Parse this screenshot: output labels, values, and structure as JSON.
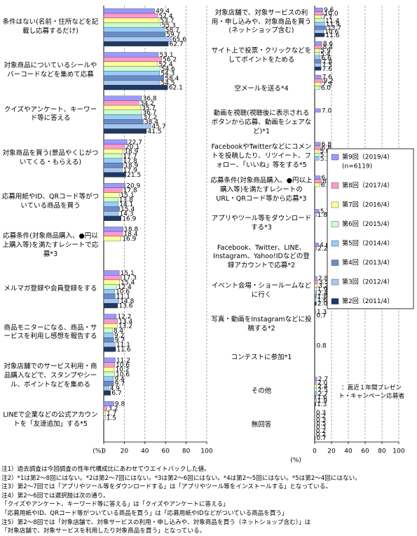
{
  "chart_data": [
    {
      "type": "bar",
      "orientation": "horizontal",
      "x_label": "(%)",
      "categories": [
        "条件はない(名前・住所などを記載し応募するだけ)",
        "対象商品についているシールやバーコードなどを集めて応募",
        "クイズやアンケート、キーワード等に答える",
        "対象商品を買う(景品やくじがついてくる・もらえる)",
        "応募用紙やID、QRコード等がついている商品を買う",
        "応募条件(対象商品購入、●円以上購入等)を満たすレシートで応募*3",
        "メルマガ登録や会員登録をする",
        "商品モニターになる、商品・サービスを利用し感想を報告する",
        "対象店舗でのサービス利用・商品購入などで、スタンプやシール、ポイントなどを集める",
        "LINEで企業などの公式アカウントを「友達追加」する*5"
      ],
      "xlim": [
        0,
        100
      ],
      "xticks": [
        0,
        20,
        40,
        60,
        80,
        100
      ],
      "grid": true,
      "series": [
        {
          "name": "第9回（2019/4）",
          "n_label": "(n=6119)",
          "color": "#9999ff",
          "values": [
            49.4,
            53.1,
            36.8,
            22.7,
            20.9,
            18.8,
            15.1,
            12.2,
            11.2,
            9.8
          ]
        },
        {
          "name": "第8回（2017/4）",
          "color": "#ff99cc",
          "values": [
            52.4,
            56.2,
            34.2,
            20.1,
            17.8,
            18.4,
            17.3,
            13.4,
            10.6,
            3.2
          ]
        },
        {
          "name": "第7回（2016/4）",
          "color": "#ffff99",
          "values": [
            53.7,
            52.4,
            35.7,
            18.9,
            15.1,
            16.9,
            15.4,
            13.2,
            10.2,
            1.7
          ]
        },
        {
          "name": "第6回（2015/4）",
          "color": "#ccffcc",
          "values": [
            55.3,
            54.6,
            36.7,
            17.7,
            13.8,
            null,
            12.4,
            8.4,
            10.6,
            1.5
          ]
        },
        {
          "name": "第5回（2014/4）",
          "color": "#99ccff",
          "values": [
            58.7,
            54.3,
            37.2,
            17.8,
            14.1,
            null,
            10.6,
            9.2,
            9.4,
            null
          ]
        },
        {
          "name": "第4回（2013/4）",
          "color": "#6b8cc7",
          "values": [
            59.7,
            58.4,
            38.4,
            18.9,
            15.4,
            null,
            11.1,
            9.7,
            9.7,
            null
          ]
        },
        {
          "name": "第3回（2012/4）",
          "color": "#a6c8f0",
          "values": [
            65.6,
            54.5,
            45.7,
            17.9,
            14.3,
            null,
            14.8,
            11.1,
            4.9,
            null
          ]
        },
        {
          "name": "第2回（2011/4）",
          "color": "#1f3864",
          "values": [
            62.7,
            62.1,
            41.5,
            21.5,
            16.9,
            null,
            13.6,
            11.6,
            6.7,
            null
          ]
        }
      ]
    },
    {
      "type": "bar",
      "orientation": "horizontal",
      "x_label": "(%)",
      "annotation": "：直近１年間プレゼント・キャンペーン応募者",
      "categories": [
        "対象店舗で、対象サービスの利用・申し込みや、対象商品を買う(ネットショップ含む)",
        "サイト上で投票・クリックなどをしてポイントをためる",
        "空メールを送る*4",
        "動画を視聴(視聴後に表示されるボタンから応募、動画をシェアなど)*1",
        "FacebookやTwitterなどにコメントを投稿したり、リツイート、フォロー、「いいね」等をする*5",
        "応募条件(対象商品購入、●円以上購入等)を満たすレシートのURL・QRコード等から応募*3",
        "アプリやツール等をダウンロードする*3",
        "Facebook、Twitter、LINE、Instagram、Yahoo!IDなどの登録アカウントで応募*2",
        "イベント会場・ショールームなどに行く",
        "写真・動画をInstagramなどに投稿する*2",
        "コンテストに参加*1",
        "その他",
        "無回答"
      ],
      "xlim": [
        0,
        100
      ],
      "xticks": [
        0,
        20,
        40,
        60,
        80,
        100
      ],
      "grid": true,
      "series": [
        {
          "values": [
            9.6,
            8.6,
            7.6,
            7.0,
            6.8,
            6.7,
            5.2,
            4.6,
            2.8,
            1.3,
            0.8,
            2.7,
            0.3
          ],
          "value_labels": [
            "9.6",
            "8.6",
            "7.6",
            "7.0",
            "6.8",
            "6.7",
            "5.2",
            "4.6",
            "2.8",
            "1.3",
            "0.8",
            "2.7",
            "0.3"
          ]
        },
        {
          "values": [
            10.0,
            8.4,
            9.2,
            null,
            6.8,
            8.0,
            1.8,
            2.2,
            3.5,
            0.7,
            null,
            2.0,
            0.2
          ],
          "value_labels": [
            "10.0",
            "8.4",
            "9.2",
            null,
            "6.8",
            "8.0",
            "1.8",
            "2.2",
            "3.5",
            "0.7",
            null,
            "2.0",
            "0.2"
          ]
        },
        {
          "values": [
            7.7,
            5.9,
            7.5,
            null,
            5.0,
            6.0,
            null,
            null,
            3.2,
            null,
            null,
            2.4,
            0.3
          ],
          "value_labels": [
            "7.7",
            "5.9",
            "7.5",
            null,
            "5.0",
            "6.0",
            null,
            null,
            "3.2",
            null,
            null,
            "2.4",
            "0.3"
          ]
        },
        {
          "values": [
            11.4,
            5.4,
            6.0,
            null,
            5.1,
            null,
            null,
            null,
            1.9,
            null,
            null,
            2.5,
            0.5
          ],
          "value_labels": [
            "11.4",
            "5.4",
            "6.0",
            null,
            "5.1",
            null,
            null,
            null,
            "1.9",
            null,
            null,
            "2.5",
            "0.5"
          ]
        },
        {
          "values": [
            11.9,
            6.6,
            null,
            null,
            5.2,
            null,
            null,
            null,
            2.4,
            null,
            null,
            2.7,
            0.3
          ],
          "value_labels": [
            "11.9",
            "6.6",
            null,
            null,
            "5.2",
            null,
            null,
            null,
            "2.4",
            null,
            null,
            "2.7",
            "0.3"
          ]
        },
        {
          "values": [
            13.7,
            7.8,
            null,
            null,
            null,
            null,
            null,
            null,
            1.8,
            null,
            null,
            1.6,
            0.2
          ],
          "value_labels": [
            "13.7",
            "7.8",
            null,
            null,
            null,
            null,
            null,
            null,
            "1.8",
            null,
            null,
            "1.6",
            "0.2"
          ]
        },
        {
          "values": [
            10.6,
            7.5,
            null,
            null,
            null,
            null,
            null,
            null,
            1.6,
            null,
            null,
            1.9,
            0.2
          ],
          "value_labels": [
            "10.6",
            "7.5",
            null,
            null,
            null,
            null,
            null,
            null,
            "1.6",
            null,
            null,
            "1.9",
            "0.2"
          ]
        },
        {
          "values": [
            11.6,
            7.6,
            null,
            null,
            null,
            null,
            null,
            null,
            2.0,
            null,
            null,
            1.3,
            0.7
          ],
          "value_labels": [
            "11.6",
            "7.6",
            null,
            null,
            null,
            null,
            null,
            null,
            "2.0",
            null,
            null,
            "1.3",
            "0.7"
          ]
        }
      ]
    }
  ],
  "notes": [
    "注1）過去調査は今回調査の性年代構成比にあわせてウエイトバックした値。",
    "注2）*1は第2～8回にはない。*2は第2～7回にはない。*3は第2～6回にはない。*4は第2～5回にはない。*5は第2～4回にはない。",
    "注3）第2～7回では「アプリやツール等をダウンロードする」は「アプリやツール等をインストールする」となっている。",
    "注4）第2～6回では選択肢は次の通り。",
    "「クイズやアンケート、キーワード等に答える」は「クイズやアンケートに答える」",
    "「応募用紙やID、QRコード等がついている商品を買う」は「応募用紙やIDなどがついている商品を買う」",
    "注5）第2～8回では「対象店舗で、対象サービスの利用・申し込みや、対象商品を買う（ネットショップ含む）」は",
    "「対象店舗で、対象サービスを利用したり対象商品を買う」となっている。"
  ]
}
